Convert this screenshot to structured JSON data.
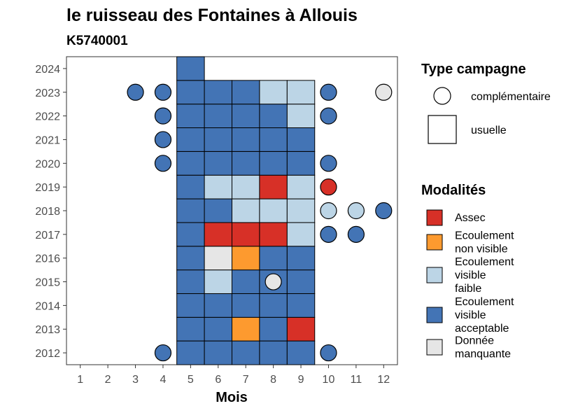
{
  "chart_data": {
    "type": "heatmap",
    "title": "le ruisseau des Fontaines à Allouis",
    "subtitle": "K5740001",
    "xlabel": "Mois",
    "ylabel": "",
    "x_ticks": [
      "1",
      "2",
      "3",
      "4",
      "5",
      "6",
      "7",
      "8",
      "9",
      "10",
      "11",
      "12"
    ],
    "y_ticks": [
      "2012",
      "2013",
      "2014",
      "2015",
      "2016",
      "2017",
      "2018",
      "2019",
      "2020",
      "2021",
      "2022",
      "2023",
      "2024"
    ],
    "xlim": [
      0.5,
      12.5
    ],
    "ylim": [
      2011.5,
      2024.5
    ],
    "grid": false,
    "legend_placement": "right",
    "legends": {
      "type_campagne": {
        "title": "Type campagne",
        "items": [
          {
            "key": "complementaire",
            "label": "complémentaire",
            "shape": "circle"
          },
          {
            "key": "usuelle",
            "label": "usuelle",
            "shape": "square"
          }
        ]
      },
      "modalites": {
        "title": "Modalités",
        "items": [
          {
            "key": "A",
            "lines": [
              "Assec"
            ]
          },
          {
            "key": "N",
            "lines": [
              "Ecoulement",
              "non visible"
            ]
          },
          {
            "key": "F",
            "lines": [
              "Ecoulement",
              "visible",
              "faible"
            ]
          },
          {
            "key": "V",
            "lines": [
              "Ecoulement",
              "visible",
              "acceptable"
            ]
          },
          {
            "key": "M",
            "lines": [
              "Donnée",
              "manquante"
            ]
          }
        ]
      }
    },
    "colors": {
      "A": "#d73027",
      "N": "#fd9a2f",
      "F": "#bcd5e6",
      "V": "#4374b5",
      "M": "#e6e6e6"
    },
    "usuelle_grid": {
      "months": [
        5,
        6,
        7,
        8,
        9
      ],
      "rows": [
        {
          "year": 2013,
          "values": [
            "V",
            "V",
            "N",
            "V",
            "A"
          ]
        },
        {
          "year": 2014,
          "values": [
            "V",
            "V",
            "V",
            "V",
            "V"
          ]
        },
        {
          "year": 2015,
          "values": [
            "V",
            "F",
            "V",
            "V",
            "V"
          ]
        },
        {
          "year": 2016,
          "values": [
            "V",
            "M",
            "N",
            "V",
            "V"
          ]
        },
        {
          "year": 2017,
          "values": [
            "V",
            "A",
            "A",
            "A",
            "F"
          ]
        },
        {
          "year": 2018,
          "values": [
            "V",
            "V",
            "F",
            "F",
            "F"
          ]
        },
        {
          "year": 2019,
          "values": [
            "V",
            "F",
            "F",
            "A",
            "F"
          ]
        },
        {
          "year": 2020,
          "values": [
            "V",
            "V",
            "V",
            "V",
            "V"
          ]
        },
        {
          "year": 2021,
          "values": [
            "V",
            "V",
            "V",
            "V",
            "V"
          ]
        },
        {
          "year": 2022,
          "values": [
            "V",
            "V",
            "V",
            "V",
            "F"
          ]
        },
        {
          "year": 2023,
          "values": [
            "V",
            "V",
            "V",
            "F",
            "F"
          ]
        },
        {
          "year": 2024,
          "values": [
            "V",
            null,
            null,
            null,
            null
          ]
        }
      ],
      "extra_cells": [
        {
          "year": 2012,
          "month": 5,
          "value": "V"
        },
        {
          "year": 2012,
          "month": 6,
          "value": "V"
        },
        {
          "year": 2012,
          "month": 7,
          "value": "V"
        },
        {
          "year": 2012,
          "month": 8,
          "value": "V"
        },
        {
          "year": 2012,
          "month": 9,
          "value": "V"
        }
      ]
    },
    "complementaire_points": [
      {
        "year": 2012,
        "month": 4,
        "value": "V"
      },
      {
        "year": 2012,
        "month": 10,
        "value": "V"
      },
      {
        "year": 2015,
        "month": 8,
        "value": "M"
      },
      {
        "year": 2017,
        "month": 10,
        "value": "V"
      },
      {
        "year": 2017,
        "month": 11,
        "value": "V"
      },
      {
        "year": 2018,
        "month": 10,
        "value": "F"
      },
      {
        "year": 2018,
        "month": 11,
        "value": "F"
      },
      {
        "year": 2018,
        "month": 12,
        "value": "V"
      },
      {
        "year": 2019,
        "month": 10,
        "value": "A"
      },
      {
        "year": 2020,
        "month": 4,
        "value": "V"
      },
      {
        "year": 2020,
        "month": 10,
        "value": "V"
      },
      {
        "year": 2021,
        "month": 4,
        "value": "V"
      },
      {
        "year": 2022,
        "month": 4,
        "value": "V"
      },
      {
        "year": 2022,
        "month": 10,
        "value": "V"
      },
      {
        "year": 2023,
        "month": 3,
        "value": "V"
      },
      {
        "year": 2023,
        "month": 4,
        "value": "V"
      },
      {
        "year": 2023,
        "month": 10,
        "value": "V"
      },
      {
        "year": 2023,
        "month": 12,
        "value": "M"
      }
    ]
  }
}
